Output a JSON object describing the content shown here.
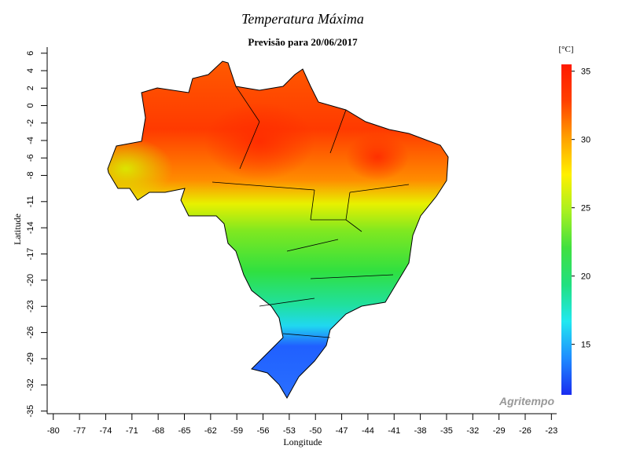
{
  "title": "Temperatura Máxima",
  "subtitle": "Previsão para 20/06/2017",
  "x_axis": {
    "label": "Longitude",
    "lim": [
      -80.7,
      -22.4
    ],
    "ticks": [
      -80,
      -77,
      -74,
      -71,
      -68,
      -65,
      -62,
      -59,
      -56,
      -53,
      -50,
      -47,
      -44,
      -41,
      -38,
      -35,
      -32,
      -29,
      -26,
      -23
    ]
  },
  "y_axis": {
    "label": "Latitude",
    "lim": [
      -35.3,
      6.7
    ],
    "ticks": [
      6,
      4,
      2,
      0,
      -2,
      -4,
      -6,
      -8,
      -11,
      -14,
      -17,
      -20,
      -23,
      -26,
      -29,
      -32,
      -35
    ]
  },
  "colorbar": {
    "unit": "[°C]",
    "range": [
      11.3,
      35.5
    ],
    "ticks": [
      15,
      20,
      25,
      30,
      35
    ],
    "colors": [
      "#1a2cf0",
      "#1f8cff",
      "#20e8f0",
      "#20e080",
      "#40e040",
      "#a8f020",
      "#fff000",
      "#ffa000",
      "#ff4000",
      "#ff1a00"
    ]
  },
  "watermark": "Agritempo"
}
